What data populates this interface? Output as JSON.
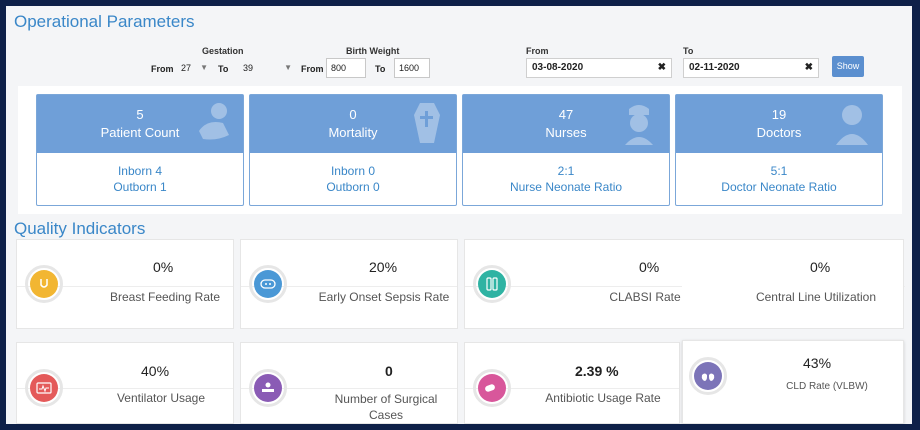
{
  "header": {
    "title": "Operational Parameters"
  },
  "filters": {
    "gestation_label": "Gestation",
    "birth_weight_label": "Birth Weight",
    "from_label": "From",
    "to_label": "To",
    "gestation_from": "27",
    "gestation_to": "39",
    "weight_from": "800",
    "weight_to": "1600",
    "date_from_label": "From",
    "date_to_label": "To",
    "date_from": "03-08-2020",
    "date_to": "02-11-2020",
    "clear_glyph": "✖",
    "show_label": "Show"
  },
  "stats": [
    {
      "value": "5",
      "label": "Patient Count",
      "line1": "Inborn  4",
      "line2": "Outborn  1",
      "icon": "baby-icon"
    },
    {
      "value": "0",
      "label": "Mortality",
      "line1": "Inborn  0",
      "line2": "Outborn  0",
      "icon": "coffin-icon"
    },
    {
      "value": "47",
      "label": "Nurses",
      "line1": "2:1",
      "line2": "Nurse Neonate Ratio",
      "icon": "nurse-icon"
    },
    {
      "value": "19",
      "label": "Doctors",
      "line1": "5:1",
      "line2": "Doctor Neonate Ratio",
      "icon": "doctor-icon"
    }
  ],
  "quality": {
    "title": "Quality Indicators",
    "items": [
      {
        "value": "0%",
        "label": "Breast Feeding Rate",
        "icon": "breast-feeding-icon",
        "color": "#f2b632"
      },
      {
        "value": "20%",
        "label": "Early Onset Sepsis Rate",
        "icon": "sepsis-icon",
        "color": "#4a98d6"
      },
      {
        "value": "0%",
        "label": "CLABSI Rate",
        "icon": "clabsi-icon",
        "color": "#2fb3a3"
      },
      {
        "value": "0%",
        "label": "Central Line Utilization",
        "icon": "",
        "color": ""
      },
      {
        "value": "40%",
        "label": "Ventilator Usage",
        "icon": "ventilator-icon",
        "color": "#e45a5a"
      },
      {
        "value": "0",
        "label": "Number of Surgical Cases",
        "icon": "surgery-icon",
        "color": "#8a5bb5"
      },
      {
        "value": "2.39 %",
        "label": "Antibiotic Usage Rate",
        "icon": "antibiotic-icon",
        "color": "#d8579b"
      },
      {
        "value": "43%",
        "label": "CLD Rate (VLBW)",
        "icon": "lungs-icon",
        "color": "#7c74b8"
      }
    ]
  }
}
